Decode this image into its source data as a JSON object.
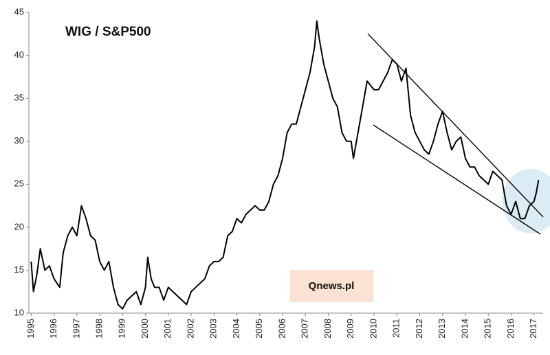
{
  "chart_data": {
    "type": "line",
    "title": "WIG / S&P500",
    "annotation": "Qnews.pl",
    "xlim": [
      1994.9,
      2017.4
    ],
    "ylim": [
      10,
      45
    ],
    "xticks": [
      1995,
      1996,
      1997,
      1998,
      1999,
      2000,
      2001,
      2002,
      2003,
      2004,
      2005,
      2006,
      2007,
      2008,
      2009,
      2010,
      2011,
      2012,
      2013,
      2014,
      2015,
      2016,
      2017
    ],
    "yticks": [
      10,
      15,
      20,
      25,
      30,
      35,
      40,
      45
    ],
    "grid": false,
    "series": [
      {
        "color": "#000000",
        "x": [
          1995.0,
          1995.1,
          1995.25,
          1995.4,
          1995.6,
          1995.8,
          1996.0,
          1996.25,
          1996.4,
          1996.6,
          1996.8,
          1997.0,
          1997.2,
          1997.4,
          1997.6,
          1997.8,
          1998.0,
          1998.2,
          1998.4,
          1998.6,
          1998.8,
          1999.0,
          1999.2,
          1999.4,
          1999.6,
          1999.8,
          2000.0,
          2000.1,
          2000.25,
          2000.4,
          2000.6,
          2000.8,
          2001.0,
          2001.2,
          2001.4,
          2001.6,
          2001.8,
          2002.0,
          2002.2,
          2002.4,
          2002.6,
          2002.8,
          2003.0,
          2003.2,
          2003.4,
          2003.6,
          2003.8,
          2004.0,
          2004.2,
          2004.4,
          2004.6,
          2004.8,
          2005.0,
          2005.2,
          2005.4,
          2005.6,
          2005.8,
          2006.0,
          2006.2,
          2006.4,
          2006.6,
          2006.8,
          2007.0,
          2007.2,
          2007.4,
          2007.5,
          2007.6,
          2007.8,
          2008.0,
          2008.2,
          2008.4,
          2008.6,
          2008.8,
          2009.0,
          2009.1,
          2009.3,
          2009.5,
          2009.7,
          2010.0,
          2010.2,
          2010.4,
          2010.6,
          2010.8,
          2011.0,
          2011.2,
          2011.4,
          2011.6,
          2011.8,
          2012.0,
          2012.2,
          2012.4,
          2012.6,
          2012.8,
          2013.0,
          2013.2,
          2013.4,
          2013.6,
          2013.8,
          2014.0,
          2014.2,
          2014.4,
          2014.6,
          2014.8,
          2015.0,
          2015.2,
          2015.4,
          2015.6,
          2015.8,
          2016.0,
          2016.2,
          2016.4,
          2016.6,
          2016.8,
          2017.0,
          2017.1,
          2017.2
        ],
        "values": [
          16,
          12.5,
          14.5,
          17.5,
          15,
          15.5,
          14,
          13,
          17,
          19,
          20,
          19,
          22.5,
          21,
          19,
          18.5,
          16,
          15,
          16,
          13,
          11,
          10.5,
          11.5,
          12,
          12.5,
          11,
          13,
          16.5,
          14,
          13,
          13,
          11.5,
          13,
          12.5,
          12,
          11.5,
          11,
          12.5,
          13,
          13.5,
          14,
          15.5,
          16,
          16,
          16.5,
          19,
          19.5,
          21,
          20.5,
          21.5,
          22,
          22.5,
          22,
          22,
          23,
          25,
          26,
          28,
          31,
          32,
          32,
          34,
          36,
          38,
          41,
          44,
          42,
          39,
          37,
          35,
          34,
          31,
          30,
          30,
          28,
          31,
          34,
          37,
          36,
          36,
          37,
          38,
          39.5,
          39,
          37,
          38.5,
          33,
          31,
          30,
          29,
          28.5,
          30,
          32,
          33.5,
          31,
          29,
          30,
          30.5,
          28,
          27,
          27,
          26,
          25.5,
          25,
          26.5,
          26,
          25.5,
          22.5,
          21.5,
          23,
          21,
          21,
          22.5,
          23,
          24,
          25.5
        ]
      }
    ]
  }
}
